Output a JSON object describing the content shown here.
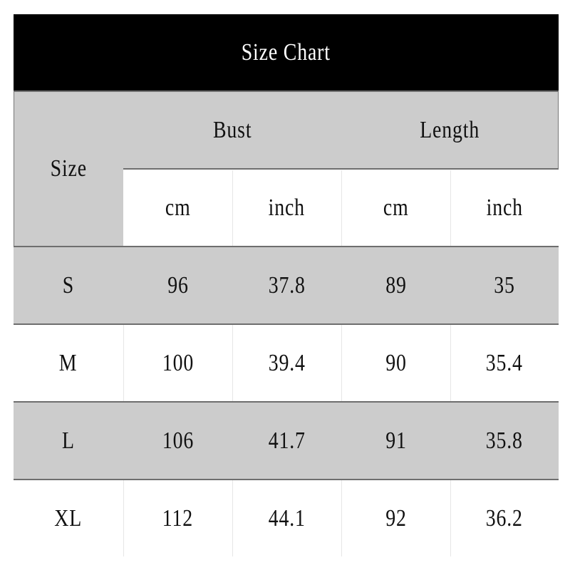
{
  "title": "Size Chart",
  "header": {
    "size": "Size",
    "groups": [
      "Bust",
      "Length"
    ],
    "units": [
      "cm",
      "inch",
      "cm",
      "inch"
    ]
  },
  "rows": [
    {
      "size": "S",
      "values": [
        "96",
        "37.8",
        "89",
        "35"
      ]
    },
    {
      "size": "M",
      "values": [
        "100",
        "39.4",
        "90",
        "35.4"
      ]
    },
    {
      "size": "L",
      "values": [
        "106",
        "41.7",
        "91",
        "35.8"
      ]
    },
    {
      "size": "XL",
      "values": [
        "112",
        "44.1",
        "92",
        "36.2"
      ]
    }
  ],
  "colors": {
    "title_bg": "#000000",
    "title_text": "#ffffff",
    "shaded": "#cccccc",
    "plain": "#ffffff"
  }
}
